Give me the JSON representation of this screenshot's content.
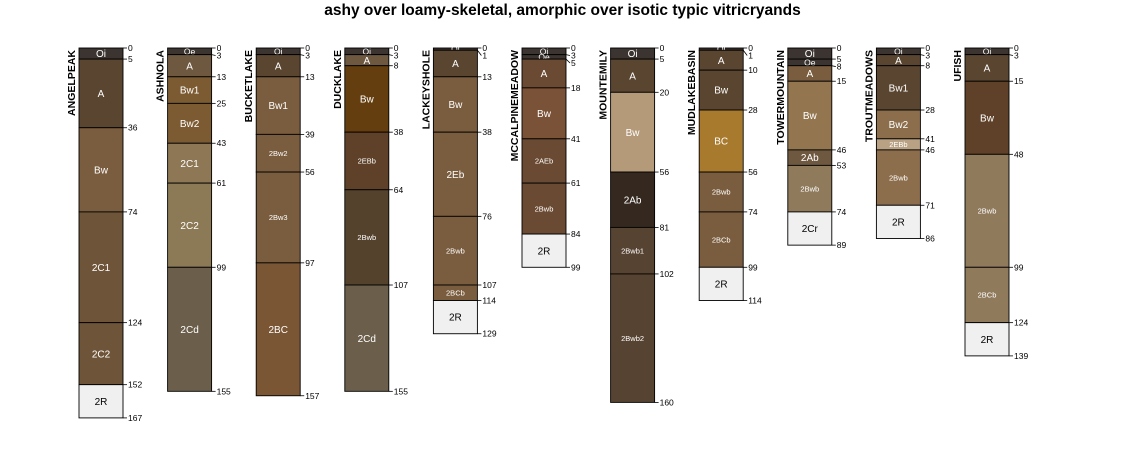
{
  "chart_data": {
    "type": "soil-profile",
    "title": "ashy over loamy-skeletal, amorphic over isotic typic vitricryands",
    "depth_units": "cm",
    "profiles": [
      {
        "name": "ANGELPEAK",
        "horizons": [
          {
            "name": "Oi",
            "top": 0,
            "bottom": 5,
            "color": "#3b3430"
          },
          {
            "name": "A",
            "top": 5,
            "bottom": 36,
            "color": "#5a4530"
          },
          {
            "name": "Bw",
            "top": 36,
            "bottom": 74,
            "color": "#7a5c3e"
          },
          {
            "name": "2C1",
            "top": 74,
            "bottom": 124,
            "color": "#6e5438"
          },
          {
            "name": "2C2",
            "top": 124,
            "bottom": 152,
            "color": "#6e5438"
          },
          {
            "name": "2R",
            "top": 152,
            "bottom": 167,
            "color": "#f0f0f0"
          }
        ]
      },
      {
        "name": "ASHNOLA",
        "horizons": [
          {
            "name": "Oe",
            "top": 0,
            "bottom": 3,
            "color": "#3b3430"
          },
          {
            "name": "A",
            "top": 3,
            "bottom": 13,
            "color": "#6f5840"
          },
          {
            "name": "Bw1",
            "top": 13,
            "bottom": 25,
            "color": "#7d5b32"
          },
          {
            "name": "Bw2",
            "top": 25,
            "bottom": 43,
            "color": "#7d5b32"
          },
          {
            "name": "2C1",
            "top": 43,
            "bottom": 61,
            "color": "#8d7755"
          },
          {
            "name": "2C2",
            "top": 61,
            "bottom": 99,
            "color": "#8c7a57"
          },
          {
            "name": "2Cd",
            "top": 99,
            "bottom": 155,
            "color": "#6b5e4a"
          }
        ]
      },
      {
        "name": "BUCKETLAKE",
        "horizons": [
          {
            "name": "Oi",
            "top": 0,
            "bottom": 3,
            "color": "#3b3430"
          },
          {
            "name": "A",
            "top": 3,
            "bottom": 13,
            "color": "#5a4530"
          },
          {
            "name": "Bw1",
            "top": 13,
            "bottom": 39,
            "color": "#7a5c3e"
          },
          {
            "name": "2Bw2",
            "top": 39,
            "bottom": 56,
            "color": "#7a5c3e"
          },
          {
            "name": "2Bw3",
            "top": 56,
            "bottom": 97,
            "color": "#7a5c3e"
          },
          {
            "name": "2BC",
            "top": 97,
            "bottom": 157,
            "color": "#7a5634"
          }
        ]
      },
      {
        "name": "DUCKLAKE",
        "horizons": [
          {
            "name": "Oi",
            "top": 0,
            "bottom": 3,
            "color": "#3b3430"
          },
          {
            "name": "A",
            "top": 3,
            "bottom": 8,
            "color": "#6f5840"
          },
          {
            "name": "Bw",
            "top": 8,
            "bottom": 38,
            "color": "#643e0e"
          },
          {
            "name": "2EBb",
            "top": 38,
            "bottom": 64,
            "color": "#5e4128"
          },
          {
            "name": "2Bwb",
            "top": 64,
            "bottom": 107,
            "color": "#54422d"
          },
          {
            "name": "2Cd",
            "top": 107,
            "bottom": 155,
            "color": "#6b5e4a"
          }
        ]
      },
      {
        "name": "LACKEYSHOLE",
        "horizons": [
          {
            "name": "Oi",
            "top": 0,
            "bottom": 1,
            "color": "#3b3430"
          },
          {
            "name": "A",
            "top": 1,
            "bottom": 13,
            "color": "#5a4530"
          },
          {
            "name": "Bw",
            "top": 13,
            "bottom": 38,
            "color": "#7a5c3e"
          },
          {
            "name": "2Eb",
            "top": 38,
            "bottom": 76,
            "color": "#7a5c3e"
          },
          {
            "name": "2Bwb",
            "top": 76,
            "bottom": 107,
            "color": "#7a5c3e"
          },
          {
            "name": "2BCb",
            "top": 107,
            "bottom": 114,
            "color": "#7a5c3e"
          },
          {
            "name": "2R",
            "top": 114,
            "bottom": 129,
            "color": "#f0f0f0"
          }
        ]
      },
      {
        "name": "MCCALPINEMEADOW",
        "horizons": [
          {
            "name": "Oi",
            "top": 0,
            "bottom": 3,
            "color": "#3b3430"
          },
          {
            "name": "Oe",
            "top": 3,
            "bottom": 5,
            "color": "#3b3430"
          },
          {
            "name": "A",
            "top": 5,
            "bottom": 18,
            "color": "#6a4a32"
          },
          {
            "name": "Bw",
            "top": 18,
            "bottom": 41,
            "color": "#7a5238"
          },
          {
            "name": "2AEb",
            "top": 41,
            "bottom": 61,
            "color": "#6a4a32"
          },
          {
            "name": "2Bwb",
            "top": 61,
            "bottom": 84,
            "color": "#6a4a32"
          },
          {
            "name": "2R",
            "top": 84,
            "bottom": 99,
            "color": "#f0f0f0"
          }
        ]
      },
      {
        "name": "MOUNTEMILY",
        "horizons": [
          {
            "name": "Oi",
            "top": 0,
            "bottom": 5,
            "color": "#3b3430"
          },
          {
            "name": "A",
            "top": 5,
            "bottom": 20,
            "color": "#5a4530"
          },
          {
            "name": "Bw",
            "top": 20,
            "bottom": 56,
            "color": "#b49a78"
          },
          {
            "name": "2Ab",
            "top": 56,
            "bottom": 81,
            "color": "#35291f"
          },
          {
            "name": "2Bwb1",
            "top": 81,
            "bottom": 102,
            "color": "#574331"
          },
          {
            "name": "2Bwb2",
            "top": 102,
            "bottom": 160,
            "color": "#574331"
          }
        ]
      },
      {
        "name": "MUDLAKEBASIN",
        "horizons": [
          {
            "name": "Oi",
            "top": 0,
            "bottom": 1,
            "color": "#3b3430"
          },
          {
            "name": "A",
            "top": 1,
            "bottom": 10,
            "color": "#5a4530"
          },
          {
            "name": "Bw",
            "top": 10,
            "bottom": 28,
            "color": "#5a4530"
          },
          {
            "name": "BC",
            "top": 28,
            "bottom": 56,
            "color": "#a87a2e"
          },
          {
            "name": "2Bwb",
            "top": 56,
            "bottom": 74,
            "color": "#7a5c3e"
          },
          {
            "name": "2BCb",
            "top": 74,
            "bottom": 99,
            "color": "#7a5c3e"
          },
          {
            "name": "2R",
            "top": 99,
            "bottom": 114,
            "color": "#f0f0f0"
          }
        ]
      },
      {
        "name": "TOWERMOUNTAIN",
        "horizons": [
          {
            "name": "Oi",
            "top": 0,
            "bottom": 5,
            "color": "#3b3430"
          },
          {
            "name": "Oe",
            "top": 5,
            "bottom": 8,
            "color": "#3b3430"
          },
          {
            "name": "A",
            "top": 8,
            "bottom": 15,
            "color": "#7a5c3e"
          },
          {
            "name": "Bw",
            "top": 15,
            "bottom": 46,
            "color": "#937650"
          },
          {
            "name": "2Ab",
            "top": 46,
            "bottom": 53,
            "color": "#6f5840"
          },
          {
            "name": "2Bwb",
            "top": 53,
            "bottom": 74,
            "color": "#8f7a5c"
          },
          {
            "name": "2Cr",
            "top": 74,
            "bottom": 89,
            "color": "#f0f0f0"
          }
        ]
      },
      {
        "name": "TROUTMEADOWS",
        "horizons": [
          {
            "name": "Oi",
            "top": 0,
            "bottom": 3,
            "color": "#3b3430"
          },
          {
            "name": "A",
            "top": 3,
            "bottom": 8,
            "color": "#5a4530"
          },
          {
            "name": "Bw1",
            "top": 8,
            "bottom": 28,
            "color": "#5a4530"
          },
          {
            "name": "Bw2",
            "top": 28,
            "bottom": 41,
            "color": "#8c6e4c"
          },
          {
            "name": "2EBb",
            "top": 41,
            "bottom": 46,
            "color": "#b9a284"
          },
          {
            "name": "2Bwb",
            "top": 46,
            "bottom": 71,
            "color": "#8c6e4c"
          },
          {
            "name": "2R",
            "top": 71,
            "bottom": 86,
            "color": "#f0f0f0"
          }
        ]
      },
      {
        "name": "UFISH",
        "horizons": [
          {
            "name": "Oi",
            "top": 0,
            "bottom": 3,
            "color": "#3b3430"
          },
          {
            "name": "A",
            "top": 3,
            "bottom": 15,
            "color": "#5a4530"
          },
          {
            "name": "Bw",
            "top": 15,
            "bottom": 48,
            "color": "#5e4128"
          },
          {
            "name": "2Bwb",
            "top": 48,
            "bottom": 99,
            "color": "#8f7a5c"
          },
          {
            "name": "2BCb",
            "top": 99,
            "bottom": 124,
            "color": "#8f7a5c"
          },
          {
            "name": "2R",
            "top": 124,
            "bottom": 139,
            "color": "#f0f0f0"
          }
        ]
      }
    ]
  }
}
